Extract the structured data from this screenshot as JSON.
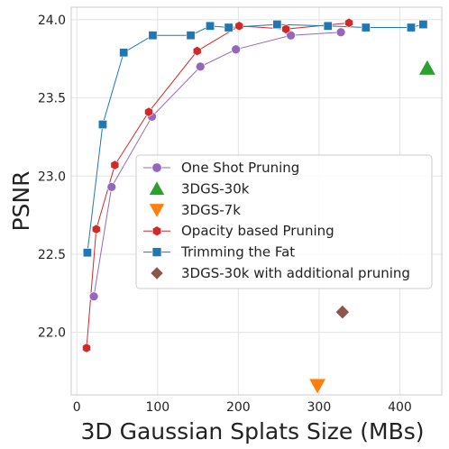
{
  "chart_data": {
    "type": "scatter",
    "title": "",
    "xlabel": "3D Gaussian Splats Size (MBs)",
    "ylabel": "PSNR",
    "xlim": [
      -7,
      452
    ],
    "ylim": [
      21.6,
      24.08
    ],
    "x_ticks": [
      "0",
      "100",
      "200",
      "300",
      "400"
    ],
    "y_ticks": [
      "22.0",
      "22.5",
      "23.0",
      "23.5",
      "24.0"
    ],
    "grid": true,
    "legend_position": "center-right",
    "series": [
      {
        "name": "One Shot Pruning",
        "color": "#9467bd",
        "marker": "circle",
        "connected": true,
        "points": [
          [
            21,
            22.23
          ],
          [
            43,
            22.93
          ],
          [
            93,
            23.38
          ],
          [
            153,
            23.7
          ],
          [
            197,
            23.81
          ],
          [
            265,
            23.9
          ],
          [
            327,
            23.92
          ]
        ]
      },
      {
        "name": "3DGS-30k",
        "color": "#2ca02c",
        "marker": "triangle-up",
        "connected": false,
        "points": [
          [
            434,
            23.69
          ]
        ]
      },
      {
        "name": "3DGS-7k",
        "color": "#ff7f0e",
        "marker": "triangle-down",
        "connected": false,
        "points": [
          [
            298,
            21.66
          ]
        ]
      },
      {
        "name": "Opacity based Pruning",
        "color": "#d62728",
        "marker": "hexagon",
        "connected": true,
        "points": [
          [
            12,
            21.9
          ],
          [
            24,
            22.66
          ],
          [
            47,
            23.07
          ],
          [
            89,
            23.41
          ],
          [
            149,
            23.8
          ],
          [
            201,
            23.96
          ],
          [
            259,
            23.94
          ],
          [
            337,
            23.98
          ]
        ]
      },
      {
        "name": "Trimming the Fat",
        "color": "#1f77b4",
        "marker": "square",
        "connected": true,
        "points": [
          [
            13,
            22.51
          ],
          [
            32,
            23.33
          ],
          [
            58,
            23.79
          ],
          [
            94,
            23.9
          ],
          [
            141,
            23.9
          ],
          [
            165,
            23.96
          ],
          [
            188,
            23.95
          ],
          [
            248,
            23.97
          ],
          [
            311,
            23.96
          ],
          [
            358,
            23.95
          ],
          [
            414,
            23.95
          ],
          [
            429,
            23.97
          ]
        ]
      },
      {
        "name": "3DGS-30k with additional pruning",
        "color": "#8c564b",
        "marker": "diamond",
        "connected": false,
        "points": [
          [
            329,
            22.13
          ]
        ]
      }
    ]
  }
}
